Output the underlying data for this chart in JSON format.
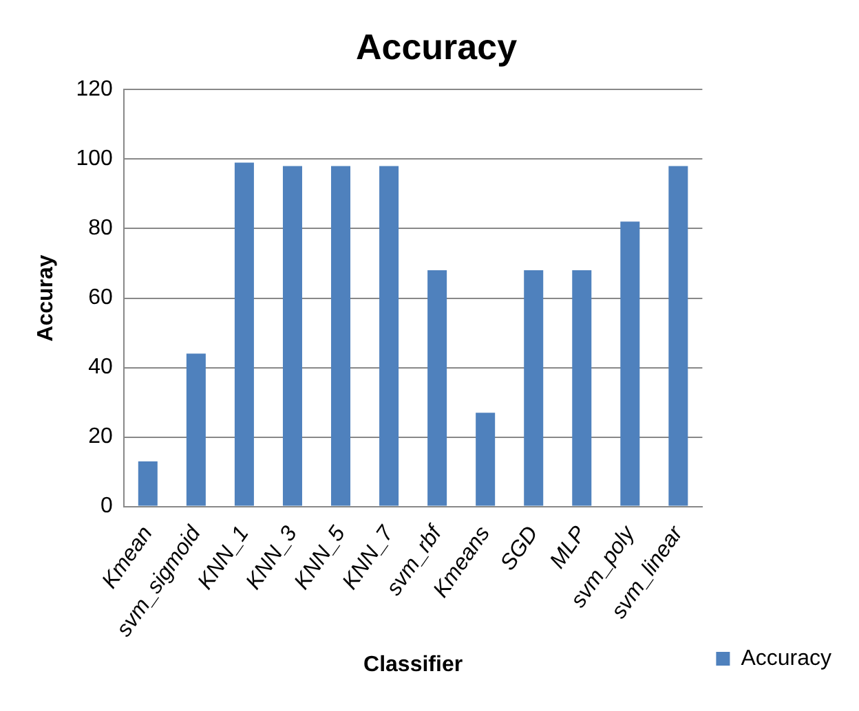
{
  "chart_data": {
    "type": "bar",
    "title": "Accuracy",
    "xlabel": "Classifier",
    "ylabel": "Accuray",
    "categories": [
      "Kmean",
      "svm_sigmoid",
      "KNN_1",
      "KNN_3",
      "KNN_5",
      "KNN_7",
      "svm_rbf",
      "Kmeans",
      "SGD",
      "MLP",
      "svm_poly",
      "svm_linear"
    ],
    "series": [
      {
        "name": "Accuracy",
        "color": "#4f81bd",
        "values": [
          13,
          44,
          99,
          98,
          98,
          98,
          68,
          27,
          68,
          68,
          82,
          98
        ]
      }
    ],
    "ylim": [
      0,
      120
    ],
    "yticks": [
      0,
      20,
      40,
      60,
      80,
      100,
      120
    ],
    "grid": "y",
    "legend": "right"
  }
}
